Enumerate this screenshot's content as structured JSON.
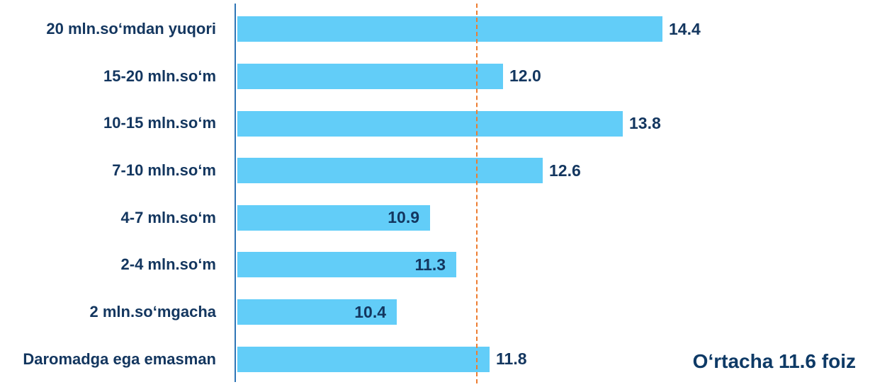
{
  "chart_data": {
    "type": "bar",
    "orientation": "horizontal",
    "categories": [
      "20 mln.soʻmdan yuqori",
      "15-20 mln.soʻm",
      "10-15 mln.soʻm",
      "7-10 mln.soʻm",
      "4-7 mln.soʻm",
      "2-4 mln.soʻm",
      "2 mln.soʻmgacha",
      "Daromadga ega emasman"
    ],
    "values": [
      14.4,
      12.0,
      13.8,
      12.6,
      10.9,
      11.3,
      10.4,
      11.8
    ],
    "value_labels": [
      "14.4",
      "12.0",
      "13.8",
      "12.6",
      "10.9",
      "11.3",
      "10.4",
      "11.8"
    ],
    "value_label_positions": [
      "outside",
      "outside",
      "outside",
      "outside",
      "inside",
      "inside",
      "inside",
      "outside"
    ],
    "xlim": [
      8,
      15
    ],
    "grid": false,
    "legend": false,
    "average_line": {
      "value": 11.6,
      "label": "Oʻrtacha 11.6 foiz",
      "style": "dashed"
    },
    "colors": {
      "bar": "#62CDF8",
      "text": "#13365F",
      "annotation_text": "#0E3A66",
      "axis": "#2E75B6",
      "average_line": "#ED7D31"
    }
  }
}
